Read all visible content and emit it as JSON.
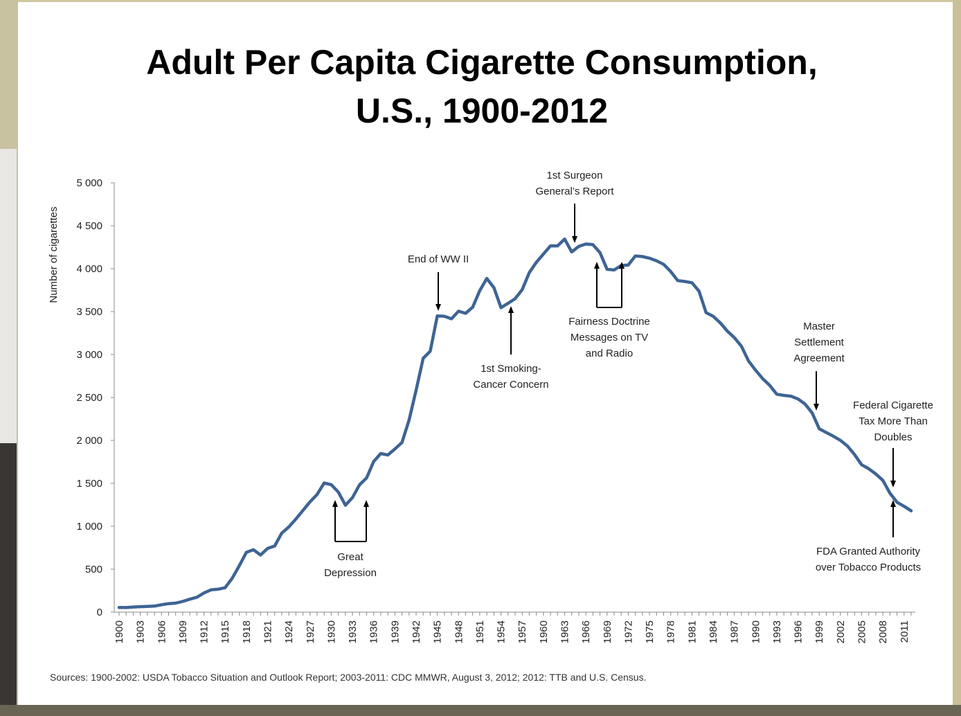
{
  "title_line1": "Adult Per Capita Cigarette Consumption,",
  "title_line2": "U.S., 1900-2012",
  "source": "Sources:  1900-2002: USDA Tobacco Situation and Outlook Report; 2003-2011:  CDC MMWR, August 3, 2012; 2012: TTB and U.S. Census.",
  "chart_data": {
    "type": "line",
    "ylabel": "Number of cigarettes",
    "xlabel": "",
    "ylim": [
      0,
      5000
    ],
    "xlim": [
      1900,
      2012
    ],
    "yticks": [
      0,
      500,
      1000,
      1500,
      2000,
      2500,
      3000,
      3500,
      4000,
      4500,
      5000
    ],
    "ytick_labels": [
      "0",
      "500",
      "1 000",
      "1 500",
      "2 000",
      "2 500",
      "3 000",
      "3 500",
      "4 000",
      "4 500",
      "5 000"
    ],
    "xtick_labels": [
      "1900",
      "1903",
      "1906",
      "1909",
      "1912",
      "1915",
      "1918",
      "1921",
      "1924",
      "1927",
      "1930",
      "1933",
      "1936",
      "1939",
      "1942",
      "1945",
      "1948",
      "1951",
      "1954",
      "1957",
      "1960",
      "1963",
      "1966",
      "1969",
      "1972",
      "1975",
      "1978",
      "1981",
      "1984",
      "1987",
      "1990",
      "1993",
      "1996",
      "1999",
      "2002",
      "2005",
      "2008",
      "2011"
    ],
    "line_color": "#3e6494",
    "grid": false,
    "x": [
      1900,
      1901,
      1902,
      1903,
      1904,
      1905,
      1906,
      1907,
      1908,
      1909,
      1910,
      1911,
      1912,
      1913,
      1914,
      1915,
      1916,
      1917,
      1918,
      1919,
      1920,
      1921,
      1922,
      1923,
      1924,
      1925,
      1926,
      1927,
      1928,
      1929,
      1930,
      1931,
      1932,
      1933,
      1934,
      1935,
      1936,
      1937,
      1938,
      1939,
      1940,
      1941,
      1942,
      1943,
      1944,
      1945,
      1946,
      1947,
      1948,
      1949,
      1950,
      1951,
      1952,
      1953,
      1954,
      1955,
      1956,
      1957,
      1958,
      1959,
      1960,
      1961,
      1962,
      1963,
      1964,
      1965,
      1966,
      1967,
      1968,
      1969,
      1970,
      1971,
      1972,
      1973,
      1974,
      1975,
      1976,
      1977,
      1978,
      1979,
      1980,
      1981,
      1982,
      1983,
      1984,
      1985,
      1986,
      1987,
      1988,
      1989,
      1990,
      1991,
      1992,
      1993,
      1994,
      1995,
      1996,
      1997,
      1998,
      1999,
      2000,
      2001,
      2002,
      2003,
      2004,
      2005,
      2006,
      2007,
      2008,
      2009,
      2010,
      2011,
      2012
    ],
    "y": [
      54,
      53,
      60,
      64,
      66,
      70,
      86,
      99,
      105,
      125,
      151,
      173,
      223,
      260,
      267,
      285,
      395,
      540,
      697,
      727,
      665,
      742,
      770,
      920,
      992,
      1085,
      1185,
      1285,
      1370,
      1504,
      1485,
      1399,
      1245,
      1334,
      1483,
      1564,
      1754,
      1847,
      1830,
      1900,
      1976,
      2236,
      2585,
      2956,
      3039,
      3449,
      3446,
      3416,
      3505,
      3480,
      3552,
      3744,
      3886,
      3778,
      3546,
      3597,
      3650,
      3755,
      3953,
      4073,
      4171,
      4266,
      4265,
      4345,
      4195,
      4259,
      4287,
      4280,
      4186,
      3993,
      3985,
      4037,
      4043,
      4148,
      4141,
      4122,
      4092,
      4051,
      3967,
      3861,
      3851,
      3836,
      3739,
      3488,
      3446,
      3370,
      3274,
      3197,
      3096,
      2926,
      2817,
      2720,
      2641,
      2538,
      2524,
      2515,
      2482,
      2423,
      2320,
      2136,
      2092,
      2049,
      2000,
      1934,
      1834,
      1716,
      1670,
      1610,
      1535,
      1385,
      1280,
      1232,
      1180
    ],
    "annotations": {
      "great_depression": [
        "Great",
        "Depression"
      ],
      "ww2": [
        "End of WW II"
      ],
      "smoking_cancer": [
        "1st Smoking-",
        "Cancer Concern"
      ],
      "surgeon_general": [
        "1st Surgeon",
        "General’s Report"
      ],
      "fairness": [
        "Fairness Doctrine",
        "Messages on TV",
        "and Radio"
      ],
      "msa": [
        "Master",
        "Settlement",
        "Agreement"
      ],
      "federal_tax": [
        "Federal Cigarette",
        "Tax More Than",
        "Doubles"
      ],
      "fda": [
        "FDA Granted Authority",
        "over Tobacco Products"
      ]
    }
  }
}
